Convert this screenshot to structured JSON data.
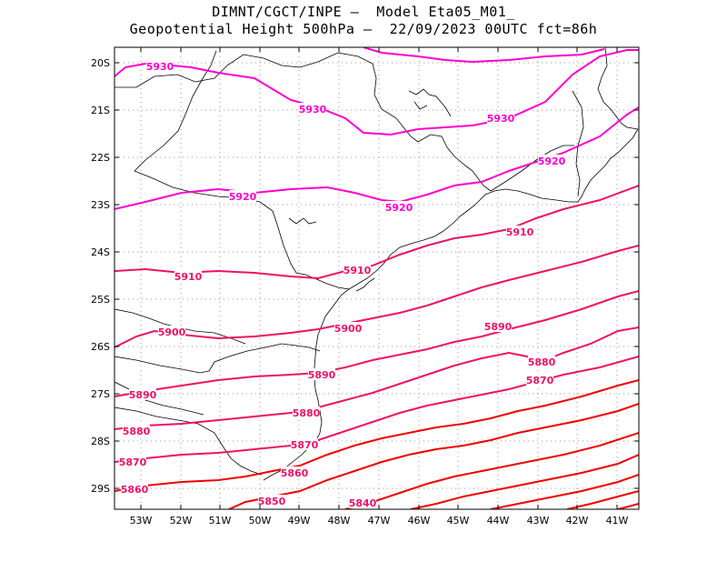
{
  "title_line1": "DIMNT/CGCT/INPE —  Model Eta05_M01_",
  "title_line2": "Geopotential Height 500hPa —  22/09/2023 00UTC fct=86h",
  "lat_labels": [
    "20S",
    "21S",
    "22S",
    "23S",
    "24S",
    "25S",
    "26S",
    "27S",
    "28S",
    "29S"
  ],
  "lon_labels": [
    "53W",
    "52W",
    "51W",
    "50W",
    "49W",
    "48W",
    "47W",
    "46W",
    "45W",
    "44W",
    "43W",
    "42W",
    "41W"
  ],
  "colors": {
    "high": "#ff00cc",
    "mid": "#ee1166",
    "low": "#ee0000",
    "coast": "#000000",
    "grid": "#999999"
  },
  "contours": [
    {
      "value": 5930,
      "labels": [
        "5930",
        "5930",
        "5930"
      ]
    },
    {
      "value": 5920,
      "labels": [
        "5920",
        "5920",
        "5920"
      ]
    },
    {
      "value": 5910,
      "labels": [
        "5910",
        "5910",
        "5910"
      ]
    },
    {
      "value": 5900,
      "labels": [
        "5900",
        "5900"
      ]
    },
    {
      "value": 5890,
      "labels": [
        "5890",
        "5890",
        "5890"
      ]
    },
    {
      "value": 5880,
      "labels": [
        "5880",
        "5880",
        "5880"
      ]
    },
    {
      "value": 5870,
      "labels": [
        "5870",
        "5870",
        "5870"
      ]
    },
    {
      "value": 5860,
      "labels": [
        "5860",
        "5860"
      ]
    },
    {
      "value": 5850,
      "labels": [
        "5850"
      ]
    },
    {
      "value": 5840,
      "labels": [
        "5840"
      ]
    }
  ]
}
